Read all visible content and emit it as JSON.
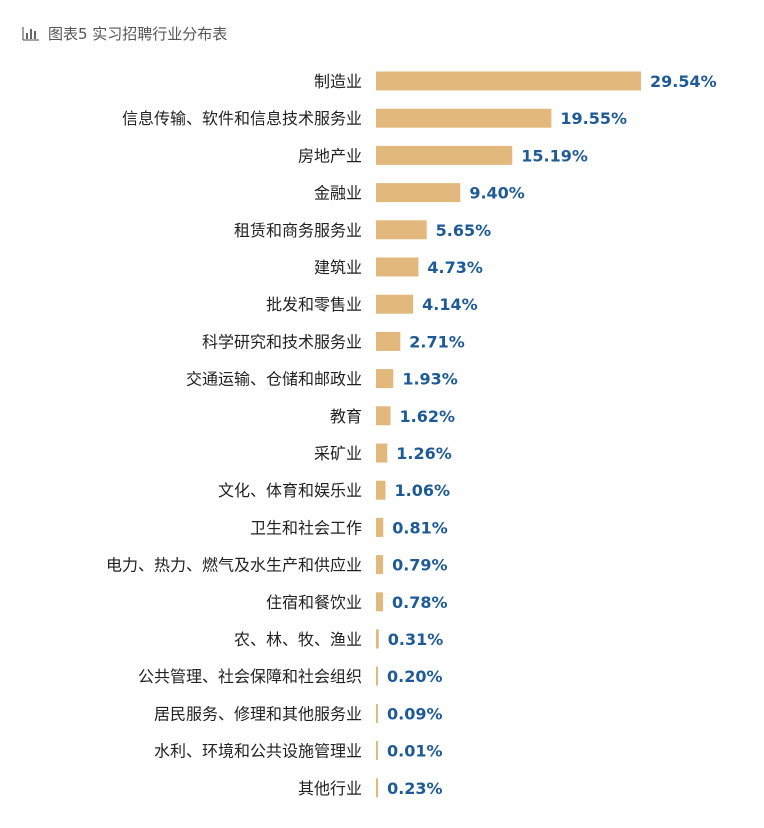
{
  "header": {
    "title": "图表5 实习招聘行业分布表"
  },
  "colors": {
    "bar": "#e2b87d",
    "value_label": "#1e5b96",
    "category_label": "#222222",
    "header_text": "#555555"
  },
  "icons": {
    "header_icon": "bar-chart-icon"
  },
  "chart_data": {
    "type": "bar",
    "orientation": "horizontal",
    "title": "图表5 实习招聘行业分布表",
    "xlabel": "",
    "ylabel": "",
    "unit": "%",
    "grid": false,
    "legend": "none",
    "xlim": [
      0,
      29.54
    ],
    "categories": [
      "制造业",
      "信息传输、软件和信息技术服务业",
      "房地产业",
      "金融业",
      "租赁和商务服务业",
      "建筑业",
      "批发和零售业",
      "科学研究和技术服务业",
      "交通运输、仓储和邮政业",
      "教育",
      "采矿业",
      "文化、体育和娱乐业",
      "卫生和社会工作",
      "电力、热力、燃气及水生产和供应业",
      "住宿和餐饮业",
      "农、林、牧、渔业",
      "公共管理、社会保障和社会组织",
      "居民服务、修理和其他服务业",
      "水利、环境和公共设施管理业",
      "其他行业"
    ],
    "values": [
      29.54,
      19.55,
      15.19,
      9.4,
      5.65,
      4.73,
      4.14,
      2.71,
      1.93,
      1.62,
      1.26,
      1.06,
      0.81,
      0.79,
      0.78,
      0.31,
      0.2,
      0.09,
      0.01,
      0.23
    ],
    "value_labels": [
      "29.54%",
      "19.55%",
      "15.19%",
      "9.40%",
      "5.65%",
      "4.73%",
      "4.14%",
      "2.71%",
      "1.93%",
      "1.62%",
      "1.26%",
      "1.06%",
      "0.81%",
      "0.79%",
      "0.78%",
      "0.31%",
      "0.20%",
      "0.09%",
      "0.01%",
      "0.23%"
    ]
  }
}
